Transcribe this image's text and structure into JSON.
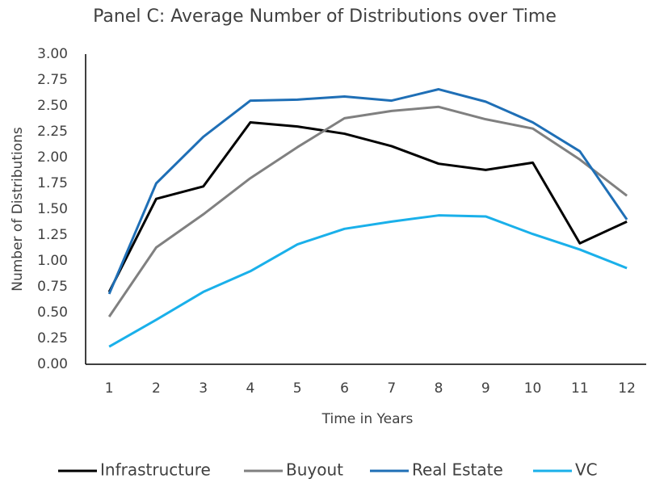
{
  "chart_data": {
    "type": "line",
    "title": "Panel C: Average Number of Distributions over Time",
    "x_label": "Time in Years",
    "y_label": "Number of Distributions",
    "categories": [
      "1",
      "2",
      "3",
      "4",
      "5",
      "6",
      "7",
      "8",
      "9",
      "10",
      "11",
      "12"
    ],
    "ylim": [
      0,
      3
    ],
    "yticks": [
      {
        "value": 0,
        "label": "0.00"
      },
      {
        "value": 0.25,
        "label": "0.25"
      },
      {
        "value": 0.5,
        "label": "0.50"
      },
      {
        "value": 0.75,
        "label": "0.75"
      },
      {
        "value": 1,
        "label": "1.00"
      },
      {
        "value": 1.25,
        "label": "1.25"
      },
      {
        "value": 1.5,
        "label": "1.50"
      },
      {
        "value": 1.75,
        "label": "1.75"
      },
      {
        "value": 2,
        "label": "2.00"
      },
      {
        "value": 2.25,
        "label": "2.25"
      },
      {
        "value": 2.5,
        "label": "2.50"
      },
      {
        "value": 2.75,
        "label": "2.75"
      },
      {
        "value": 3,
        "label": "3.00"
      }
    ],
    "grid": false,
    "legend": "bottom",
    "series": [
      {
        "name": "Infrastructure",
        "color": "#000000",
        "values": [
          0.7,
          1.6,
          1.72,
          2.34,
          2.3,
          2.23,
          2.11,
          1.94,
          1.88,
          1.95,
          1.17,
          1.38
        ]
      },
      {
        "name": "Buyout",
        "color": "#808080",
        "values": [
          0.46,
          1.13,
          1.45,
          1.8,
          2.1,
          2.38,
          2.45,
          2.49,
          2.37,
          2.28,
          1.98,
          1.63
        ]
      },
      {
        "name": "Real Estate",
        "color": "#1f6fb6",
        "values": [
          0.68,
          1.75,
          2.2,
          2.55,
          2.56,
          2.59,
          2.55,
          2.66,
          2.54,
          2.34,
          2.06,
          1.4
        ]
      },
      {
        "name": "VC",
        "color": "#1ab0ea",
        "values": [
          0.17,
          0.43,
          0.7,
          0.9,
          1.16,
          1.31,
          1.38,
          1.44,
          1.43,
          1.26,
          1.11,
          0.93
        ]
      }
    ]
  }
}
